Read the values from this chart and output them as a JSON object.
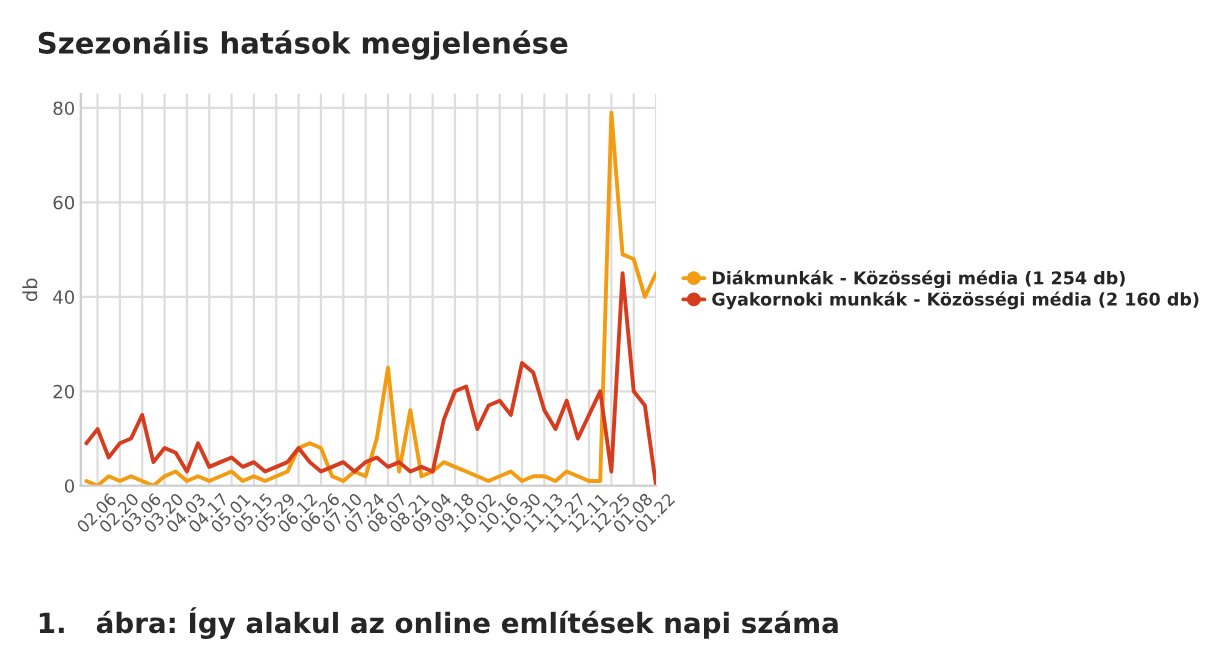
{
  "chart_data": {
    "type": "line",
    "title": "Szezonális hatások megjelenése",
    "ylabel": "db",
    "annotations": [
      "1.   ábra: Így alakul az online említések napi száma"
    ],
    "categories": [
      null,
      "02.06",
      null,
      "02.20",
      null,
      "03.06",
      null,
      "03.20",
      null,
      "04.03",
      null,
      "04.17",
      null,
      "05.01",
      null,
      "05.15",
      null,
      "05.29",
      null,
      "06.12",
      null,
      "06.26",
      null,
      "07.10",
      null,
      "07.24",
      null,
      "08.07",
      null,
      "08.21",
      null,
      "09.04",
      null,
      "09.18",
      null,
      "10.02",
      null,
      "10.16",
      null,
      "10.30",
      null,
      "11.13",
      null,
      "11.27",
      null,
      "12.11",
      null,
      "12.25",
      null,
      "01.08",
      null,
      "01.22"
    ],
    "series": [
      {
        "name": "Diákmunkák - Közösségi média (1 254 db)",
        "color": "#f39c12",
        "values": [
          1,
          0,
          2,
          1,
          2,
          1,
          0,
          2,
          3,
          1,
          2,
          1,
          2,
          3,
          1,
          2,
          1,
          2,
          3,
          8,
          9,
          8,
          2,
          1,
          3,
          2,
          10,
          25,
          3,
          16,
          2,
          3,
          5,
          4,
          3,
          2,
          1,
          2,
          3,
          1,
          2,
          2,
          1,
          3,
          2,
          1,
          1,
          79,
          49,
          48,
          40,
          45
        ]
      },
      {
        "name": "Gyakornoki munkák - Közösségi média (2 160 db)",
        "color": "#d63c1e",
        "values": [
          9,
          12,
          6,
          9,
          10,
          15,
          5,
          8,
          7,
          3,
          9,
          4,
          5,
          6,
          4,
          5,
          3,
          4,
          5,
          8,
          5,
          3,
          4,
          5,
          3,
          5,
          6,
          4,
          5,
          3,
          4,
          3,
          14,
          20,
          21,
          12,
          17,
          18,
          15,
          26,
          24,
          16,
          12,
          18,
          10,
          15,
          20,
          3,
          45,
          20,
          17,
          0
        ]
      }
    ],
    "ylim": [
      0,
      83
    ],
    "yticks": [
      0,
      20,
      40,
      60,
      80
    ],
    "grid": true,
    "legend": "right",
    "line_style": "solid"
  }
}
